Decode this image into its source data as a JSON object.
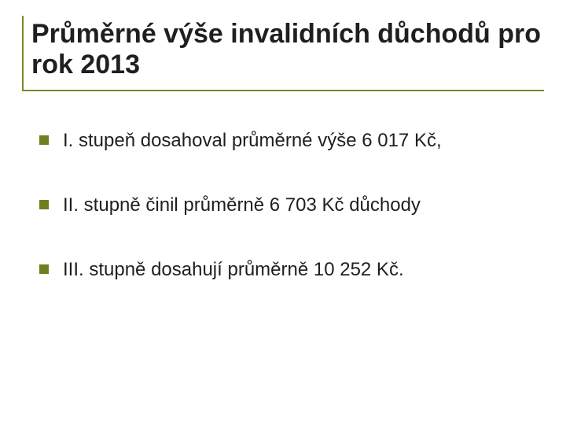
{
  "slide": {
    "background_color": "#ffffff",
    "title": {
      "text": "Průměrné výše invalidních důchodů pro rok 2013",
      "color": "#1f1f1f",
      "fontsize": 34,
      "fontweight": "bold",
      "border_color": "#7a8a2a"
    },
    "bullets": [
      {
        "text": "I. stupeň dosahoval průměrné výše 6 017 Kč,"
      },
      {
        "text": "II. stupně činil průměrně 6 703 Kč důchody"
      },
      {
        "text": "III. stupně dosahují průměrně 10 252 Kč."
      }
    ],
    "bullet_marker": {
      "color": "#6e7f1f",
      "size": 12,
      "shape": "square"
    },
    "bullet_text": {
      "color": "#1f1f1f",
      "fontsize": 24
    }
  }
}
